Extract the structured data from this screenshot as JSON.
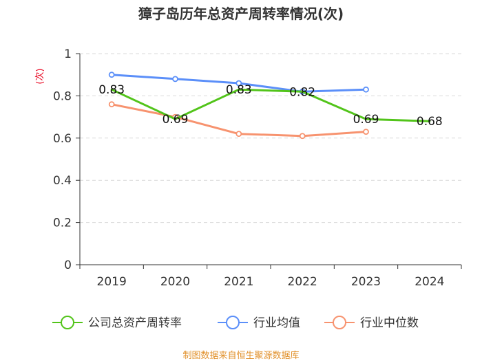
{
  "chart_data": {
    "type": "line",
    "title": "獐子岛历年总资产周转率情况(次)",
    "ylabel": "(次)",
    "xlabel": "",
    "categories": [
      "2019",
      "2020",
      "2021",
      "2022",
      "2023",
      "2024"
    ],
    "ylim": [
      0,
      1
    ],
    "yticks": [
      0,
      0.2,
      0.4,
      0.6,
      0.8,
      1
    ],
    "ytick_labels": [
      "0",
      "0.2",
      "0.4",
      "0.6",
      "0.8",
      "1"
    ],
    "grid": true,
    "legend_position": "bottom",
    "series": [
      {
        "name": "公司总资产周转率",
        "color": "#52c41a",
        "values": [
          0.83,
          0.69,
          0.83,
          0.82,
          0.69,
          0.68
        ],
        "labels": [
          "0.83",
          "0.69",
          "0.83",
          "0.82",
          "0.69",
          "0.68"
        ],
        "show_labels": true
      },
      {
        "name": "行业均值",
        "color": "#5b8ff9",
        "values": [
          0.9,
          0.88,
          0.86,
          0.82,
          0.83,
          null
        ],
        "show_labels": false
      },
      {
        "name": "行业中位数",
        "color": "#f7936f",
        "values": [
          0.76,
          0.7,
          0.62,
          0.61,
          0.63,
          null
        ],
        "show_labels": false
      }
    ],
    "source": "制图数据来自恒生聚源数据库"
  }
}
